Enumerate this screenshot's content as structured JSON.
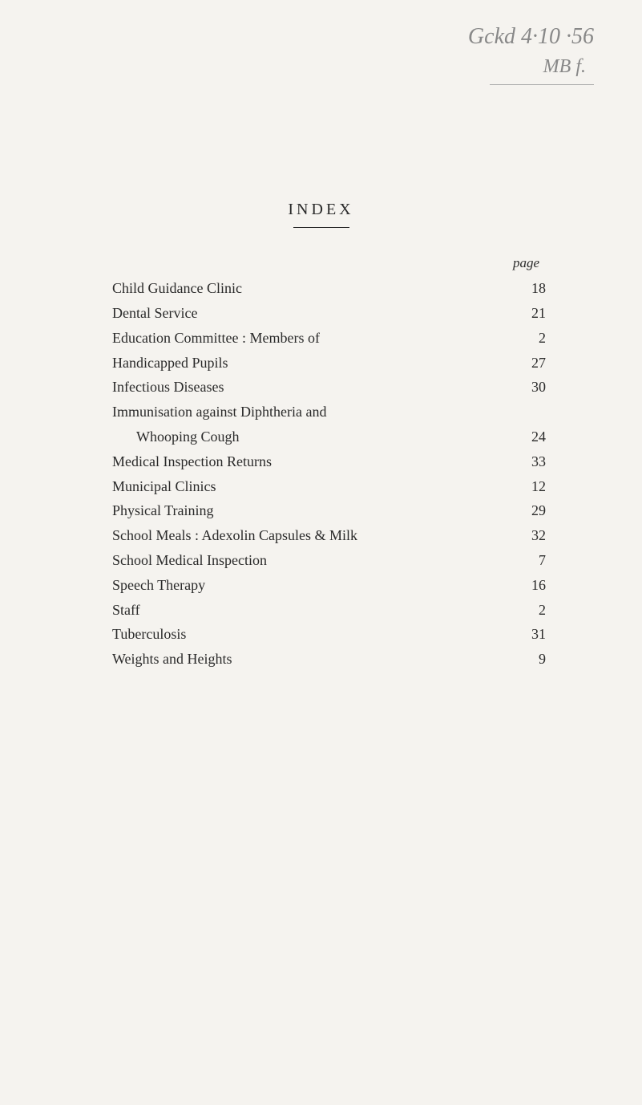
{
  "handwriting": {
    "line1": "Gckd  4·10 ·56",
    "line2": "MB  f."
  },
  "title": "INDEX",
  "pageLabel": "page",
  "entries": [
    {
      "text": "Child Guidance Clinic",
      "page": "18",
      "indent": false
    },
    {
      "text": "Dental Service",
      "page": "21",
      "indent": false
    },
    {
      "text": "Education Committee : Members of",
      "page": "2",
      "indent": false
    },
    {
      "text": "Handicapped Pupils",
      "page": "27",
      "indent": false
    },
    {
      "text": "Infectious Diseases",
      "page": "30",
      "indent": false
    },
    {
      "text": "Immunisation against Diphtheria and",
      "page": "",
      "indent": false,
      "nodots": true
    },
    {
      "text": "Whooping Cough",
      "page": "24",
      "indent": true
    },
    {
      "text": "Medical Inspection Returns",
      "page": "33",
      "indent": false
    },
    {
      "text": "Municipal Clinics",
      "page": "12",
      "indent": false
    },
    {
      "text": "Physical Training",
      "page": "29",
      "indent": false
    },
    {
      "text": "School Meals : Adexolin Capsules & Milk",
      "page": "32",
      "indent": false
    },
    {
      "text": "School Medical Inspection",
      "page": "7",
      "indent": false
    },
    {
      "text": "Speech Therapy",
      "page": "16",
      "indent": false
    },
    {
      "text": "Staff",
      "page": "2",
      "indent": false
    },
    {
      "text": "Tuberculosis",
      "page": "31",
      "indent": false
    },
    {
      "text": "Weights and Heights",
      "page": "9",
      "indent": false
    }
  ]
}
